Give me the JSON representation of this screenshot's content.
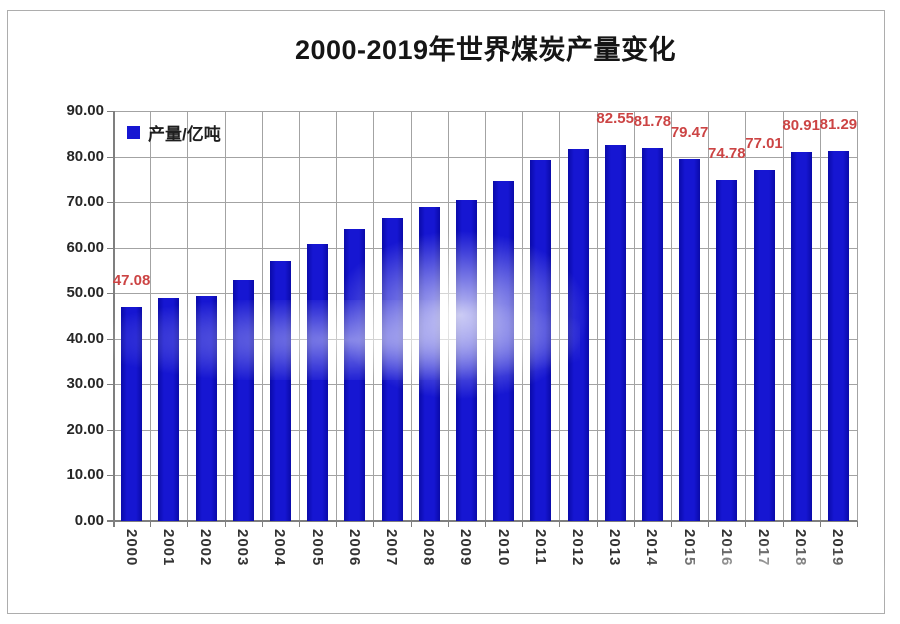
{
  "title": "2000-2019年世界煤炭产量变化",
  "legend": {
    "label": "产量/亿吨"
  },
  "colors": {
    "bar": "#1616d2",
    "bar_edge": "#0a0aa8",
    "data_label": "#cc4444",
    "gridline": "#a3a3a3",
    "axis": "#7f7f7f",
    "tick_text": "#262626",
    "border": "#adadad"
  },
  "y_axis": {
    "ticks": [
      "0.00",
      "10.00",
      "20.00",
      "30.00",
      "40.00",
      "50.00",
      "60.00",
      "70.00",
      "80.00",
      "90.00"
    ]
  },
  "chart_data": {
    "type": "bar",
    "title": "2000-2019年世界煤炭产量变化",
    "legend_entries": [
      "产量/亿吨"
    ],
    "legend_position": "top-left-inside",
    "categories": [
      "2000",
      "2001",
      "2002",
      "2003",
      "2004",
      "2005",
      "2006",
      "2007",
      "2008",
      "2009",
      "2010",
      "2011",
      "2012",
      "2013",
      "2014",
      "2015",
      "2016",
      "2017",
      "2018",
      "2019"
    ],
    "values": [
      47.08,
      48.9,
      49.5,
      53.0,
      57.1,
      60.9,
      64.0,
      66.5,
      69.0,
      70.4,
      74.6,
      79.3,
      81.6,
      82.55,
      81.78,
      79.47,
      74.78,
      77.01,
      80.91,
      81.29
    ],
    "point_labels": [
      "47.08",
      "",
      "",
      "",
      "",
      "",
      "",
      "",
      "",
      "",
      "",
      "",
      "",
      "82.55",
      "81.78",
      "79.47",
      "74.78",
      "77.01",
      "80.91",
      "81.29"
    ],
    "xlabel": "",
    "ylabel": "产量/亿吨",
    "ylim": [
      0,
      90
    ],
    "ytick_step": 10,
    "grid": "horizontal and vertical gridlines"
  }
}
